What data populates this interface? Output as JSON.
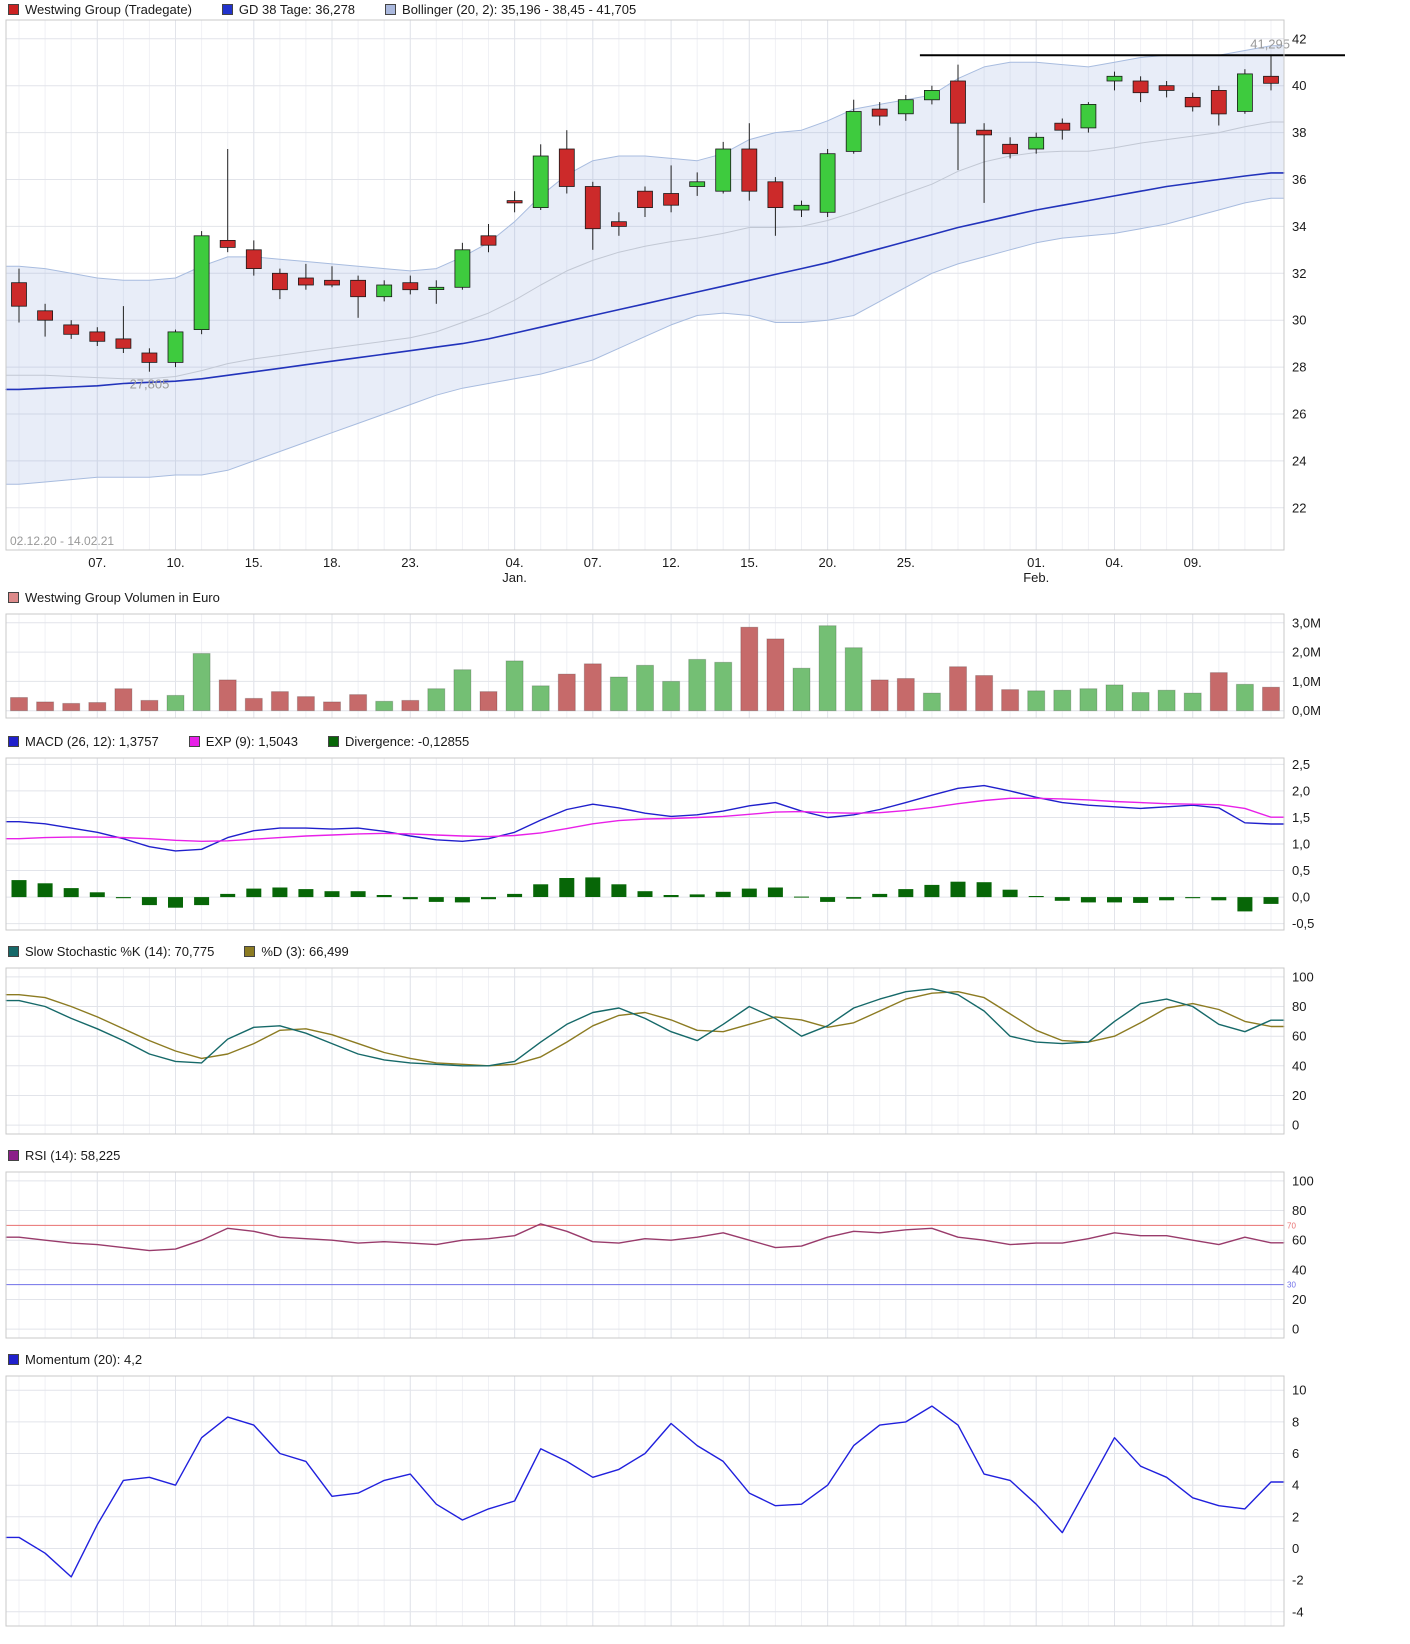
{
  "legends": {
    "price": [
      {
        "label": "Westwing Group (Tradegate)",
        "color": "#cc2222"
      },
      {
        "label": "GD 38 Tage: 36,278",
        "color": "#2233cc"
      },
      {
        "label": "Bollinger (20, 2): 35,196 - 38,45 - 41,705",
        "color": "#aab8dd"
      }
    ],
    "volume": [
      {
        "label": "Westwing Group Volumen in Euro",
        "color": "#dd8a8a"
      }
    ],
    "macd": [
      {
        "label": "MACD (26, 12): 1,3757",
        "color": "#2020cc"
      },
      {
        "label": "EXP (9): 1,5043",
        "color": "#e820e8"
      },
      {
        "label": "Divergence: -0,12855",
        "color": "#076607"
      }
    ],
    "stochastic": [
      {
        "label": "Slow Stochastic %K (14): 70,775",
        "color": "#166969"
      },
      {
        "label": "%D (3): 66,499",
        "color": "#8c7b22"
      }
    ],
    "rsi": [
      {
        "label": "RSI (14): 58,225",
        "color": "#8b2089"
      }
    ],
    "momentum": [
      {
        "label": "Momentum (20): 4,2",
        "color": "#2020cc"
      }
    ]
  },
  "chart_data": {
    "type": "candlestick",
    "title": "Westwing Group (Tradegate)",
    "date_range": "02.12.20 - 14.02.21",
    "x_labels": [
      {
        "index": 3,
        "label": "07."
      },
      {
        "index": 6,
        "label": "10."
      },
      {
        "index": 9,
        "label": "15."
      },
      {
        "index": 12,
        "label": "18."
      },
      {
        "index": 15,
        "label": "23."
      },
      {
        "index": 19,
        "label": "04.",
        "sub": "Jan."
      },
      {
        "index": 22,
        "label": "07."
      },
      {
        "index": 25,
        "label": "12."
      },
      {
        "index": 28,
        "label": "15."
      },
      {
        "index": 31,
        "label": "20."
      },
      {
        "index": 34,
        "label": "25."
      },
      {
        "index": 39,
        "label": "01.",
        "sub": "Feb."
      },
      {
        "index": 42,
        "label": "04."
      },
      {
        "index": 45,
        "label": "09."
      }
    ],
    "y_ticks": {
      "price": {
        "values": [
          42,
          40,
          38,
          36,
          34,
          32,
          30,
          28,
          26,
          24,
          22
        ],
        "labels": [
          "42",
          "40",
          "38",
          "36",
          "34",
          "32",
          "30",
          "28",
          "26",
          "24",
          "22"
        ]
      },
      "volume": {
        "values": [
          3,
          2,
          1,
          0
        ],
        "labels": [
          "3,0M",
          "2,0M",
          "1,0M",
          "0,0M"
        ]
      },
      "macd": {
        "values": [
          2.5,
          2.0,
          1.5,
          1.0,
          0.5,
          0.0,
          -0.5
        ],
        "labels": [
          "2,5",
          "2,0",
          "1,5",
          "1,0",
          "0,5",
          "0,0",
          "-0,5"
        ]
      },
      "stoch": {
        "values": [
          100,
          80,
          60,
          40,
          20,
          0
        ],
        "labels": [
          "100",
          "80",
          "60",
          "40",
          "20",
          "0"
        ]
      },
      "rsi": {
        "values": [
          100,
          80,
          60,
          40,
          20,
          0
        ],
        "labels": [
          "100",
          "80",
          "60",
          "40",
          "20",
          "0"
        ]
      },
      "momentum": {
        "values": [
          10,
          8,
          6,
          4,
          2,
          0,
          -2,
          -4
        ],
        "labels": [
          "10",
          "8",
          "6",
          "4",
          "2",
          "0",
          "-2",
          "-4"
        ]
      }
    },
    "candles": [
      [
        31.6,
        32.2,
        29.9,
        30.6
      ],
      [
        30.4,
        30.7,
        29.3,
        30.0
      ],
      [
        29.8,
        30.0,
        29.2,
        29.4
      ],
      [
        29.5,
        29.7,
        28.9,
        29.1
      ],
      [
        29.2,
        30.6,
        28.6,
        28.8
      ],
      [
        28.6,
        28.8,
        27.805,
        28.2
      ],
      [
        28.2,
        29.6,
        28.0,
        29.5
      ],
      [
        29.6,
        33.8,
        29.4,
        33.6
      ],
      [
        33.4,
        37.3,
        32.9,
        33.1
      ],
      [
        33.0,
        33.4,
        31.9,
        32.2
      ],
      [
        32.0,
        32.2,
        30.9,
        31.3
      ],
      [
        31.8,
        32.4,
        31.3,
        31.5
      ],
      [
        31.7,
        32.3,
        31.4,
        31.5
      ],
      [
        31.7,
        31.9,
        30.1,
        31.0
      ],
      [
        31.0,
        31.7,
        30.8,
        31.5
      ],
      [
        31.6,
        31.9,
        31.1,
        31.3
      ],
      [
        31.3,
        31.7,
        30.7,
        31.4
      ],
      [
        31.4,
        33.3,
        31.3,
        33.0
      ],
      [
        33.6,
        34.1,
        32.9,
        33.2
      ],
      [
        35.1,
        35.5,
        34.6,
        35.0
      ],
      [
        34.8,
        37.5,
        34.7,
        37.0
      ],
      [
        37.3,
        38.1,
        35.4,
        35.7
      ],
      [
        35.7,
        35.9,
        33.0,
        33.9
      ],
      [
        34.2,
        34.6,
        33.6,
        34.0
      ],
      [
        35.5,
        35.7,
        34.4,
        34.8
      ],
      [
        35.4,
        36.6,
        34.6,
        34.9
      ],
      [
        35.7,
        36.3,
        35.3,
        35.9
      ],
      [
        35.5,
        37.6,
        35.4,
        37.3
      ],
      [
        37.3,
        38.4,
        35.1,
        35.5
      ],
      [
        35.9,
        36.1,
        33.6,
        34.8
      ],
      [
        34.7,
        35.1,
        34.4,
        34.9
      ],
      [
        34.6,
        37.3,
        34.4,
        37.1
      ],
      [
        37.2,
        39.4,
        37.1,
        38.9
      ],
      [
        39.0,
        39.3,
        38.3,
        38.7
      ],
      [
        38.8,
        39.6,
        38.5,
        39.4
      ],
      [
        39.4,
        40.0,
        39.2,
        39.8
      ],
      [
        40.2,
        40.9,
        36.4,
        38.4
      ],
      [
        38.1,
        38.4,
        35.0,
        37.9
      ],
      [
        37.5,
        37.8,
        36.9,
        37.1
      ],
      [
        37.3,
        38.0,
        37.1,
        37.8
      ],
      [
        38.4,
        38.6,
        37.7,
        38.1
      ],
      [
        38.2,
        39.3,
        38.0,
        39.2
      ],
      [
        40.2,
        40.6,
        39.8,
        40.4
      ],
      [
        40.2,
        40.4,
        39.3,
        39.7
      ],
      [
        40.0,
        40.2,
        39.5,
        39.8
      ],
      [
        39.5,
        39.7,
        38.9,
        39.1
      ],
      [
        39.8,
        40.0,
        38.3,
        38.8
      ],
      [
        38.9,
        40.7,
        38.8,
        40.5
      ],
      [
        40.4,
        41.295,
        39.8,
        40.1
      ]
    ],
    "volume": {
      "values": [
        0.45,
        0.3,
        0.25,
        0.28,
        0.75,
        0.35,
        0.52,
        1.95,
        1.05,
        0.42,
        0.65,
        0.48,
        0.3,
        0.55,
        0.32,
        0.35,
        0.75,
        1.4,
        0.65,
        1.7,
        0.85,
        1.25,
        1.6,
        1.15,
        1.55,
        1.0,
        1.75,
        1.65,
        2.85,
        2.45,
        1.45,
        2.9,
        2.15,
        1.05,
        1.1,
        0.6,
        1.5,
        1.2,
        0.72,
        0.68,
        0.7,
        0.75,
        0.88,
        0.62,
        0.7,
        0.6,
        1.3,
        0.9,
        0.8
      ],
      "colors": [
        "r",
        "r",
        "r",
        "r",
        "r",
        "r",
        "g",
        "g",
        "r",
        "r",
        "r",
        "r",
        "r",
        "r",
        "g",
        "r",
        "g",
        "g",
        "r",
        "g",
        "g",
        "r",
        "r",
        "g",
        "g",
        "g",
        "g",
        "g",
        "r",
        "r",
        "g",
        "g",
        "g",
        "r",
        "r",
        "g",
        "r",
        "r",
        "r",
        "g",
        "g",
        "g",
        "g",
        "g",
        "g",
        "g",
        "r",
        "g",
        "r"
      ]
    },
    "gd38": [
      27.05,
      27.1,
      27.15,
      27.2,
      27.3,
      27.35,
      27.4,
      27.5,
      27.65,
      27.8,
      27.95,
      28.1,
      28.25,
      28.4,
      28.55,
      28.7,
      28.85,
      29.0,
      29.2,
      29.45,
      29.7,
      29.95,
      30.2,
      30.45,
      30.7,
      30.95,
      31.2,
      31.45,
      31.7,
      31.95,
      32.2,
      32.45,
      32.75,
      33.05,
      33.35,
      33.65,
      33.95,
      34.2,
      34.45,
      34.7,
      34.9,
      35.1,
      35.3,
      35.5,
      35.7,
      35.85,
      36.0,
      36.15,
      36.278
    ],
    "bollinger": {
      "upper": [
        32.3,
        32.2,
        32.0,
        31.8,
        31.7,
        31.7,
        31.8,
        32.3,
        32.7,
        32.7,
        32.6,
        32.5,
        32.4,
        32.3,
        32.2,
        32.1,
        32.2,
        32.7,
        33.3,
        34.2,
        35.3,
        36.2,
        36.8,
        37.0,
        37.0,
        36.9,
        36.8,
        37.1,
        37.7,
        38.0,
        38.1,
        38.5,
        39.0,
        39.2,
        39.4,
        39.6,
        40.3,
        40.8,
        41.0,
        41.0,
        40.9,
        40.8,
        41.0,
        41.2,
        41.3,
        41.3,
        41.3,
        41.5,
        41.705
      ],
      "lower": [
        23.0,
        23.1,
        23.2,
        23.3,
        23.3,
        23.3,
        23.4,
        23.4,
        23.6,
        24.0,
        24.4,
        24.8,
        25.2,
        25.6,
        26.0,
        26.4,
        26.8,
        27.1,
        27.3,
        27.5,
        27.7,
        28.0,
        28.3,
        28.8,
        29.3,
        29.8,
        30.2,
        30.3,
        30.2,
        29.9,
        29.9,
        30.0,
        30.2,
        30.8,
        31.4,
        32.0,
        32.4,
        32.7,
        33.0,
        33.3,
        33.5,
        33.6,
        33.7,
        33.9,
        34.1,
        34.4,
        34.7,
        35.0,
        35.196
      ]
    },
    "high_line": {
      "value": 41.295,
      "label": "41,295",
      "start_index": 35
    },
    "low_label": {
      "value": 27.805,
      "label": "27,805",
      "index": 5
    },
    "macd": {
      "macd": [
        1.42,
        1.38,
        1.3,
        1.22,
        1.1,
        0.95,
        0.87,
        0.9,
        1.12,
        1.25,
        1.3,
        1.3,
        1.28,
        1.3,
        1.24,
        1.15,
        1.08,
        1.05,
        1.1,
        1.22,
        1.45,
        1.65,
        1.75,
        1.68,
        1.58,
        1.52,
        1.55,
        1.62,
        1.72,
        1.78,
        1.62,
        1.5,
        1.55,
        1.65,
        1.78,
        1.92,
        2.05,
        2.1,
        2.0,
        1.88,
        1.78,
        1.73,
        1.7,
        1.67,
        1.7,
        1.73,
        1.68,
        1.4,
        1.376
      ],
      "signal": [
        1.1,
        1.12,
        1.13,
        1.13,
        1.12,
        1.1,
        1.07,
        1.05,
        1.06,
        1.09,
        1.12,
        1.15,
        1.17,
        1.19,
        1.2,
        1.19,
        1.17,
        1.15,
        1.14,
        1.16,
        1.21,
        1.29,
        1.38,
        1.44,
        1.47,
        1.48,
        1.5,
        1.52,
        1.56,
        1.6,
        1.61,
        1.59,
        1.58,
        1.59,
        1.63,
        1.69,
        1.76,
        1.82,
        1.86,
        1.86,
        1.85,
        1.83,
        1.8,
        1.78,
        1.76,
        1.75,
        1.74,
        1.67,
        1.504
      ]
    },
    "stochastic": {
      "k": [
        84,
        80,
        72,
        65,
        57,
        48,
        43,
        42,
        58,
        66,
        67,
        62,
        55,
        48,
        44,
        42,
        41,
        40,
        40,
        43,
        56,
        68,
        76,
        79,
        72,
        63,
        57,
        68,
        80,
        72,
        60,
        67,
        79,
        85,
        90,
        92,
        88,
        77,
        60,
        56,
        55,
        56,
        70,
        82,
        85,
        80,
        68,
        63,
        70.8
      ],
      "d": [
        88,
        86,
        80,
        73,
        65,
        57,
        50,
        45,
        48,
        55,
        64,
        65,
        61,
        55,
        49,
        45,
        42,
        41,
        40,
        41,
        46,
        56,
        67,
        74,
        76,
        71,
        64,
        63,
        68,
        73,
        71,
        66,
        69,
        77,
        85,
        89,
        90,
        86,
        75,
        64,
        57,
        56,
        60,
        69,
        79,
        82,
        78,
        70,
        66.5
      ]
    },
    "rsi": [
      62,
      60,
      58,
      57,
      55,
      53,
      54,
      60,
      68,
      66,
      62,
      61,
      60,
      58,
      59,
      58,
      57,
      60,
      61,
      63,
      71,
      66,
      59,
      58,
      61,
      60,
      62,
      65,
      60,
      55,
      56,
      62,
      66,
      65,
      67,
      68,
      62,
      60,
      57,
      58,
      58,
      61,
      65,
      63,
      63,
      60,
      57,
      62,
      58.2
    ],
    "rsi_thresholds": [
      {
        "value": 70,
        "label": "70",
        "color": "#e87070"
      },
      {
        "value": 30,
        "label": "30",
        "color": "#7070e8"
      }
    ],
    "momentum": [
      0.7,
      -0.3,
      -1.8,
      1.5,
      4.3,
      4.5,
      4.0,
      7.0,
      8.3,
      7.8,
      6.0,
      5.5,
      3.3,
      3.5,
      4.3,
      4.7,
      2.8,
      1.8,
      2.5,
      3.0,
      6.3,
      5.5,
      4.5,
      5.0,
      6.0,
      7.9,
      6.5,
      5.5,
      3.5,
      2.7,
      2.8,
      4.0,
      6.5,
      7.8,
      8.0,
      9.0,
      7.8,
      4.7,
      4.3,
      2.8,
      1.0,
      4.0,
      7.0,
      5.2,
      4.5,
      3.2,
      2.7,
      2.5,
      4.2
    ],
    "colors": {
      "candle_up": "#3ecb3e",
      "candle_down": "#cc2a2a",
      "volume_up": "#74bf74",
      "volume_down": "#c66a6a",
      "gd38": "#2233bb",
      "bollinger_fill": "rgba(125,155,215,0.18)",
      "bollinger_edge": "#a8bcdf",
      "bollinger_mid": "#c2c8d4",
      "macd_line": "#2020cc",
      "signal_line": "#e820e8",
      "divergence": "#076607",
      "stoch_k": "#166969",
      "stoch_d": "#8c7b22",
      "rsi_line": "#993b6b",
      "momentum_line": "#2020dd",
      "grid": "#e2e4ea",
      "grid_light": "#f0f1f5",
      "border": "#c9c9c9",
      "text": "#1a1a1a",
      "muted": "#999999"
    }
  }
}
